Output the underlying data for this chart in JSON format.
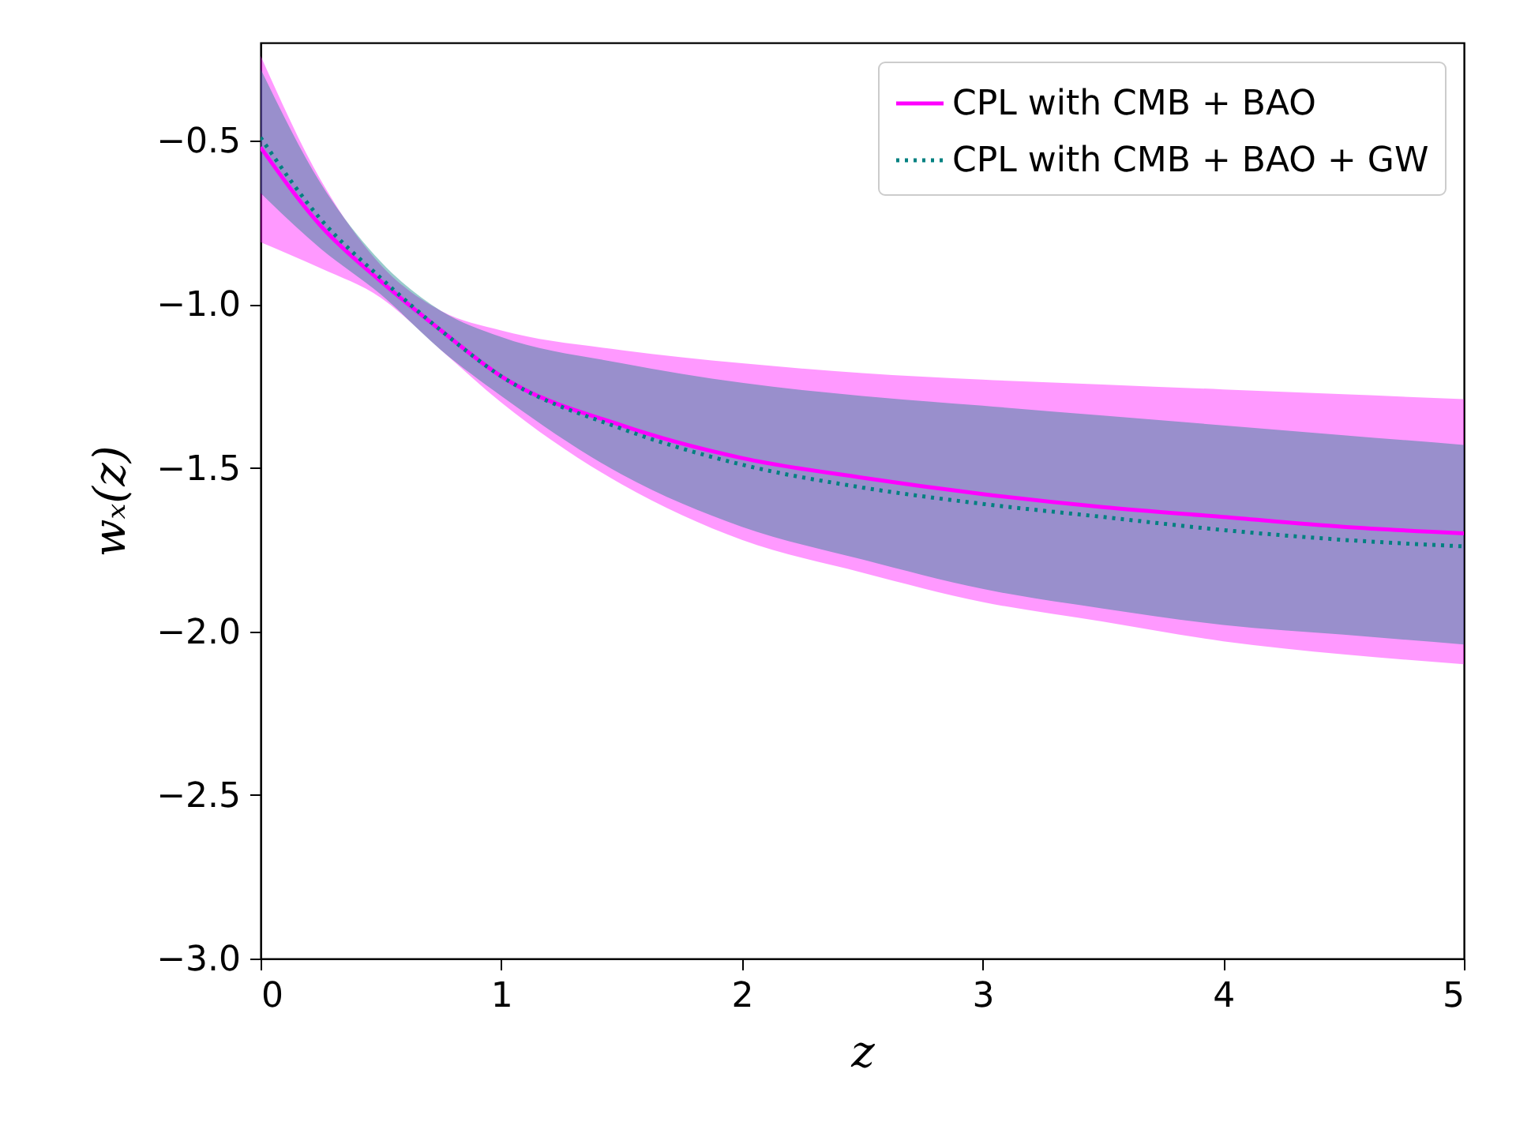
{
  "chart_data": {
    "type": "line",
    "xlabel": "z",
    "ylabel": "wₓ(z)",
    "x": [
      0,
      0.25,
      0.5,
      0.75,
      1,
      1.5,
      2,
      2.5,
      3,
      3.5,
      4,
      4.5,
      5
    ],
    "series": [
      {
        "name": "CPL with CMB + BAO",
        "color": "#ff00ff",
        "line_style": "solid",
        "values": [
          -0.52,
          -0.76,
          -0.93,
          -1.08,
          -1.22,
          -1.37,
          -1.47,
          -1.53,
          -1.58,
          -1.62,
          -1.65,
          -1.68,
          -1.7
        ],
        "lower": [
          -0.81,
          -0.89,
          -0.98,
          -1.14,
          -1.3,
          -1.55,
          -1.72,
          -1.82,
          -1.91,
          -1.97,
          -2.03,
          -2.07,
          -2.1
        ],
        "upper": [
          -0.24,
          -0.62,
          -0.88,
          -1.02,
          -1.08,
          -1.14,
          -1.18,
          -1.21,
          -1.23,
          -1.245,
          -1.26,
          -1.275,
          -1.29
        ]
      },
      {
        "name": "CPL with CMB + BAO + GW",
        "color": "#008080",
        "line_style": "dotted",
        "values": [
          -0.49,
          -0.74,
          -0.92,
          -1.08,
          -1.22,
          -1.38,
          -1.49,
          -1.56,
          -1.61,
          -1.65,
          -1.69,
          -1.72,
          -1.74
        ],
        "lower": [
          -0.66,
          -0.83,
          -0.97,
          -1.14,
          -1.28,
          -1.52,
          -1.68,
          -1.78,
          -1.87,
          -1.93,
          -1.98,
          -2.01,
          -2.04
        ],
        "upper": [
          -0.28,
          -0.63,
          -0.87,
          -1.02,
          -1.1,
          -1.18,
          -1.24,
          -1.28,
          -1.31,
          -1.34,
          -1.37,
          -1.4,
          -1.43
        ]
      }
    ],
    "xlim": [
      0,
      5
    ],
    "xticks": [
      0,
      1,
      2,
      3,
      4,
      5
    ],
    "ylim": [
      -3.0,
      -0.2
    ],
    "yticks": [
      {
        "value": -3.0,
        "label": "−3.0"
      },
      {
        "value": -2.5,
        "label": "−2.5"
      },
      {
        "value": -2.0,
        "label": "−2.0"
      },
      {
        "value": -1.5,
        "label": "−1.5"
      },
      {
        "value": -1.0,
        "label": "−1.0"
      },
      {
        "value": -0.5,
        "label": "−0.5"
      }
    ],
    "grid": false,
    "legend": "top right"
  }
}
